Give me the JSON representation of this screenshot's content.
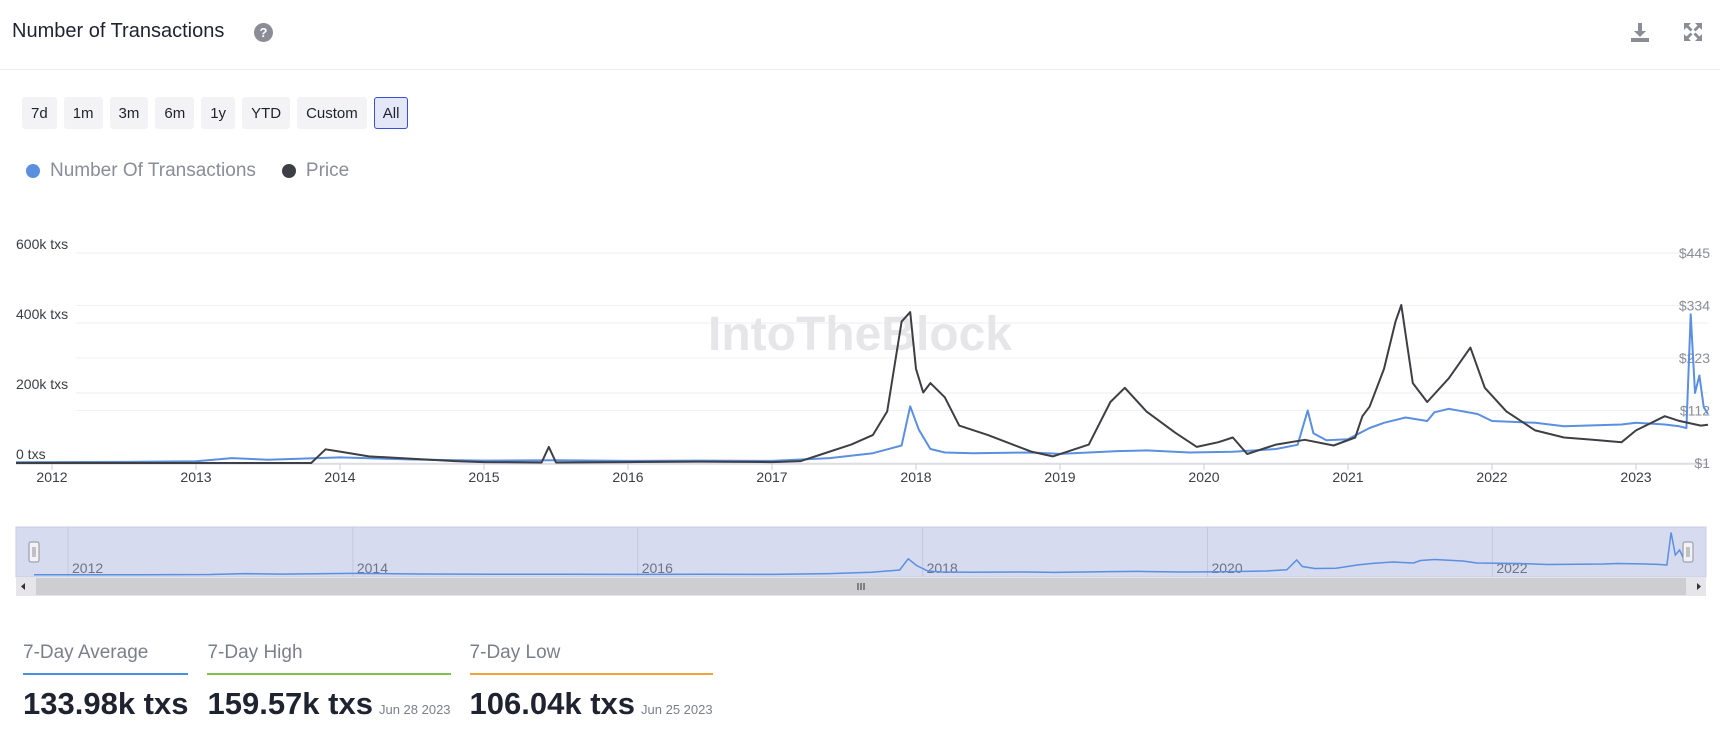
{
  "header": {
    "title": "Number of Transactions",
    "help_icon": "?"
  },
  "icons": {
    "help": "question-circle-icon",
    "download": "download-icon",
    "fullscreen": "expand-icon"
  },
  "ranges": [
    "7d",
    "1m",
    "3m",
    "6m",
    "1y",
    "YTD",
    "Custom",
    "All"
  ],
  "active_range": "All",
  "legend": [
    {
      "label": "Number Of Transactions",
      "color": "#5b8fe0"
    },
    {
      "label": "Price",
      "color": "#3d3f44"
    }
  ],
  "watermark": "IntoTheBlock",
  "chart_data": {
    "type": "line",
    "y_left_ticks": [
      "600k txs",
      "400k txs",
      "200k txs",
      "0 txs"
    ],
    "y_left_range": [
      0,
      600000
    ],
    "y_right_ticks": [
      "$445",
      "$334",
      "$223",
      "$112",
      "$1"
    ],
    "y_right_range": [
      1,
      445
    ],
    "x_ticks": [
      "2012",
      "2013",
      "2014",
      "2015",
      "2016",
      "2017",
      "2018",
      "2019",
      "2020",
      "2021",
      "2022",
      "2023"
    ],
    "x_range": [
      2011.75,
      2023.5
    ],
    "grid": true,
    "series": [
      {
        "name": "Number Of Transactions",
        "axis": "left",
        "color": "#5b8fe0",
        "x": [
          2011.75,
          2012.5,
          2013.0,
          2013.25,
          2013.5,
          2014.0,
          2014.5,
          2015.0,
          2015.5,
          2016.0,
          2016.5,
          2017.0,
          2017.4,
          2017.7,
          2017.9,
          2017.96,
          2018.02,
          2018.1,
          2018.2,
          2018.4,
          2018.8,
          2019.0,
          2019.4,
          2019.6,
          2019.9,
          2020.2,
          2020.5,
          2020.65,
          2020.72,
          2020.76,
          2020.85,
          2021.0,
          2021.15,
          2021.25,
          2021.4,
          2021.55,
          2021.6,
          2021.7,
          2021.9,
          2022.0,
          2022.3,
          2022.5,
          2022.9,
          2023.0,
          2023.2,
          2023.3,
          2023.35,
          2023.38,
          2023.41,
          2023.44,
          2023.47,
          2023.5
        ],
        "y": [
          2000,
          3000,
          5000,
          14000,
          9000,
          16000,
          10000,
          7000,
          8000,
          6000,
          7000,
          6000,
          14000,
          28000,
          50000,
          162000,
          95000,
          40000,
          30000,
          28000,
          30000,
          26000,
          34000,
          36000,
          30000,
          32000,
          40000,
          52000,
          150000,
          85000,
          65000,
          68000,
          100000,
          115000,
          130000,
          120000,
          145000,
          155000,
          140000,
          120000,
          115000,
          105000,
          110000,
          115000,
          110000,
          105000,
          100000,
          425000,
          200000,
          250000,
          160000,
          140000
        ]
      },
      {
        "name": "Price",
        "axis": "right",
        "color": "#3d3f44",
        "x": [
          2011.75,
          2013.0,
          2013.8,
          2013.9,
          2014.0,
          2014.2,
          2014.5,
          2014.8,
          2015.0,
          2015.4,
          2015.45,
          2015.5,
          2016.0,
          2016.5,
          2017.0,
          2017.2,
          2017.35,
          2017.55,
          2017.7,
          2017.8,
          2017.9,
          2017.96,
          2018.0,
          2018.05,
          2018.1,
          2018.2,
          2018.3,
          2018.5,
          2018.8,
          2018.95,
          2019.2,
          2019.35,
          2019.45,
          2019.6,
          2019.8,
          2019.95,
          2020.1,
          2020.2,
          2020.3,
          2020.5,
          2020.7,
          2020.9,
          2021.05,
          2021.1,
          2021.15,
          2021.25,
          2021.33,
          2021.37,
          2021.45,
          2021.55,
          2021.7,
          2021.85,
          2021.95,
          2022.1,
          2022.3,
          2022.5,
          2022.7,
          2022.9,
          2023.0,
          2023.2,
          2023.3,
          2023.45,
          2023.5
        ],
        "y": [
          1,
          1,
          1,
          30,
          25,
          15,
          10,
          5,
          3,
          2,
          35,
          2,
          3,
          4,
          3,
          5,
          20,
          40,
          60,
          110,
          300,
          320,
          200,
          150,
          170,
          140,
          80,
          60,
          25,
          15,
          40,
          130,
          160,
          110,
          65,
          35,
          45,
          55,
          20,
          40,
          50,
          38,
          55,
          100,
          120,
          200,
          300,
          335,
          170,
          130,
          180,
          245,
          160,
          110,
          70,
          55,
          50,
          45,
          70,
          100,
          90,
          80,
          82
        ]
      }
    ]
  },
  "navigator": {
    "labels": [
      "2012",
      "2014",
      "2016",
      "2018",
      "2020",
      "2022"
    ],
    "series_y": [
      2000,
      5000,
      16000,
      7000,
      6000,
      28000,
      162000,
      30000,
      26000,
      36000,
      30000,
      150000,
      68000,
      130000,
      145000,
      155000,
      115000,
      105000,
      110000,
      425000,
      140000
    ]
  },
  "stats": [
    {
      "label": "7-Day Average",
      "value": "133.98k txs",
      "date": "",
      "color": "#4a90e2"
    },
    {
      "label": "7-Day High",
      "value": "159.57k txs",
      "date": "Jun 28 2023",
      "color": "#7cc24b"
    },
    {
      "label": "7-Day Low",
      "value": "106.04k txs",
      "date": "Jun 25 2023",
      "color": "#f2a23a"
    }
  ]
}
